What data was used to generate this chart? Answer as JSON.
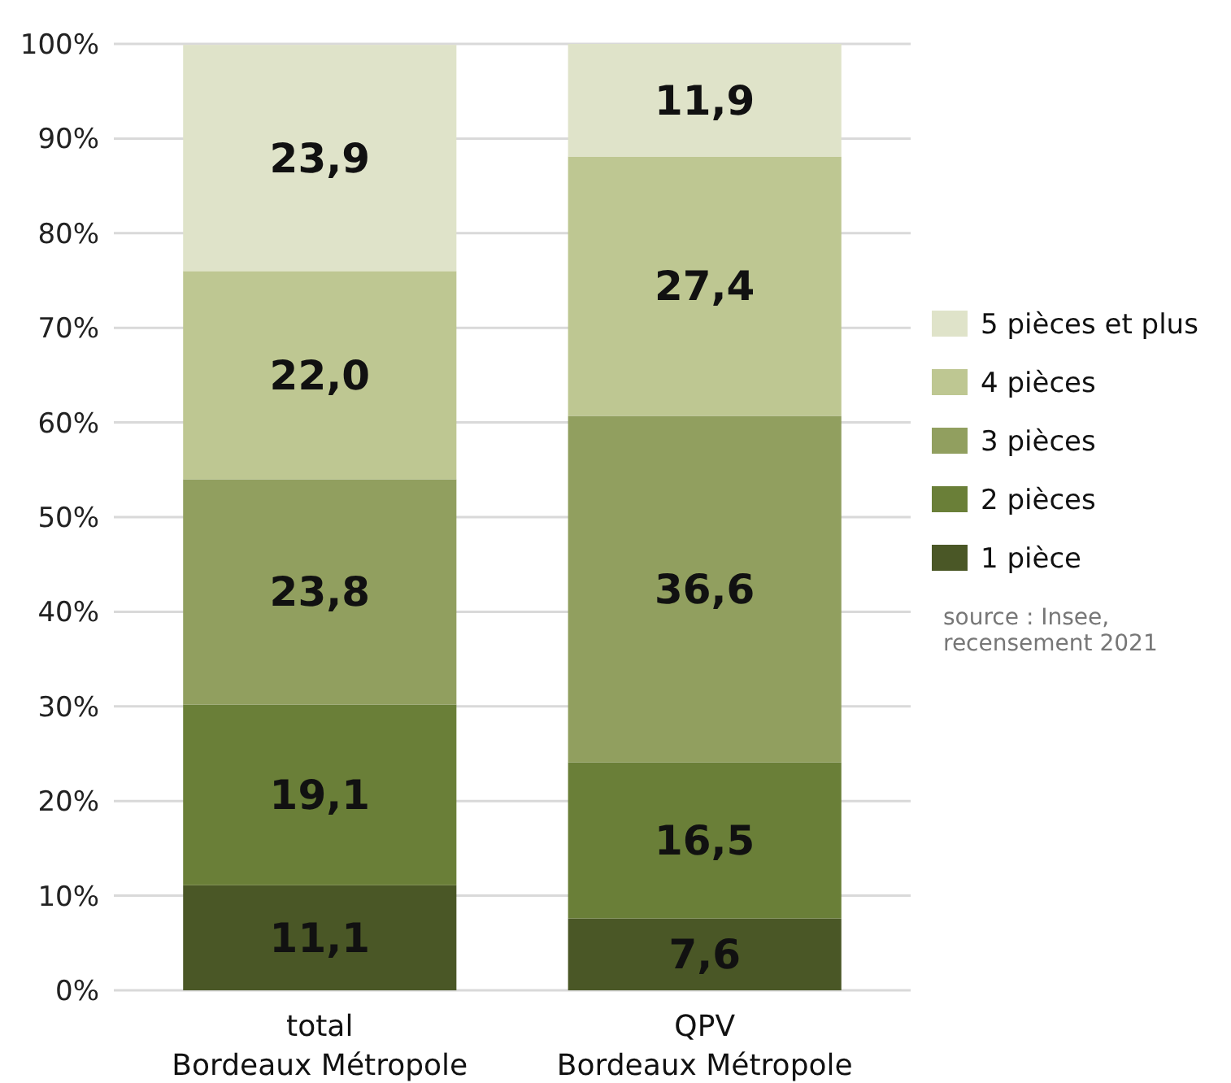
{
  "chart_data": {
    "type": "bar",
    "stacked": true,
    "categories": [
      "total\nBordeaux Métropole",
      "QPV\nBordeaux Métropole"
    ],
    "series": [
      {
        "name": "1 pièce",
        "color": "#4a5726",
        "values": [
          11.1,
          7.6
        ],
        "value_labels": [
          "11,1",
          "7,6"
        ]
      },
      {
        "name": "2 pièces",
        "color": "#6a7f38",
        "values": [
          19.1,
          16.5
        ],
        "value_labels": [
          "19,1",
          "16,5"
        ]
      },
      {
        "name": "3 pièces",
        "color": "#919f5f",
        "values": [
          23.8,
          36.6
        ],
        "value_labels": [
          "23,8",
          "36,6"
        ]
      },
      {
        "name": "4 pièces",
        "color": "#bec792",
        "values": [
          22.0,
          27.4
        ],
        "value_labels": [
          "22,0",
          "27,4"
        ]
      },
      {
        "name": "5 pièces et plus",
        "color": "#dfe3c9",
        "values": [
          23.9,
          11.9
        ],
        "value_labels": [
          "23,9",
          "11,9"
        ]
      }
    ],
    "ylim": [
      0,
      100
    ],
    "yticks": [
      {
        "value": 0,
        "label": "0%"
      },
      {
        "value": 10,
        "label": "10%"
      },
      {
        "value": 20,
        "label": "20%"
      },
      {
        "value": 30,
        "label": "30%"
      },
      {
        "value": 40,
        "label": "40%"
      },
      {
        "value": 50,
        "label": "50%"
      },
      {
        "value": 60,
        "label": "60%"
      },
      {
        "value": 70,
        "label": "70%"
      },
      {
        "value": 80,
        "label": "80%"
      },
      {
        "value": 90,
        "label": "90%"
      },
      {
        "value": 100,
        "label": "100%"
      }
    ],
    "grid": "y",
    "legend": "right",
    "annotations": [
      "source : Insee,\nrecensement 2021"
    ]
  }
}
